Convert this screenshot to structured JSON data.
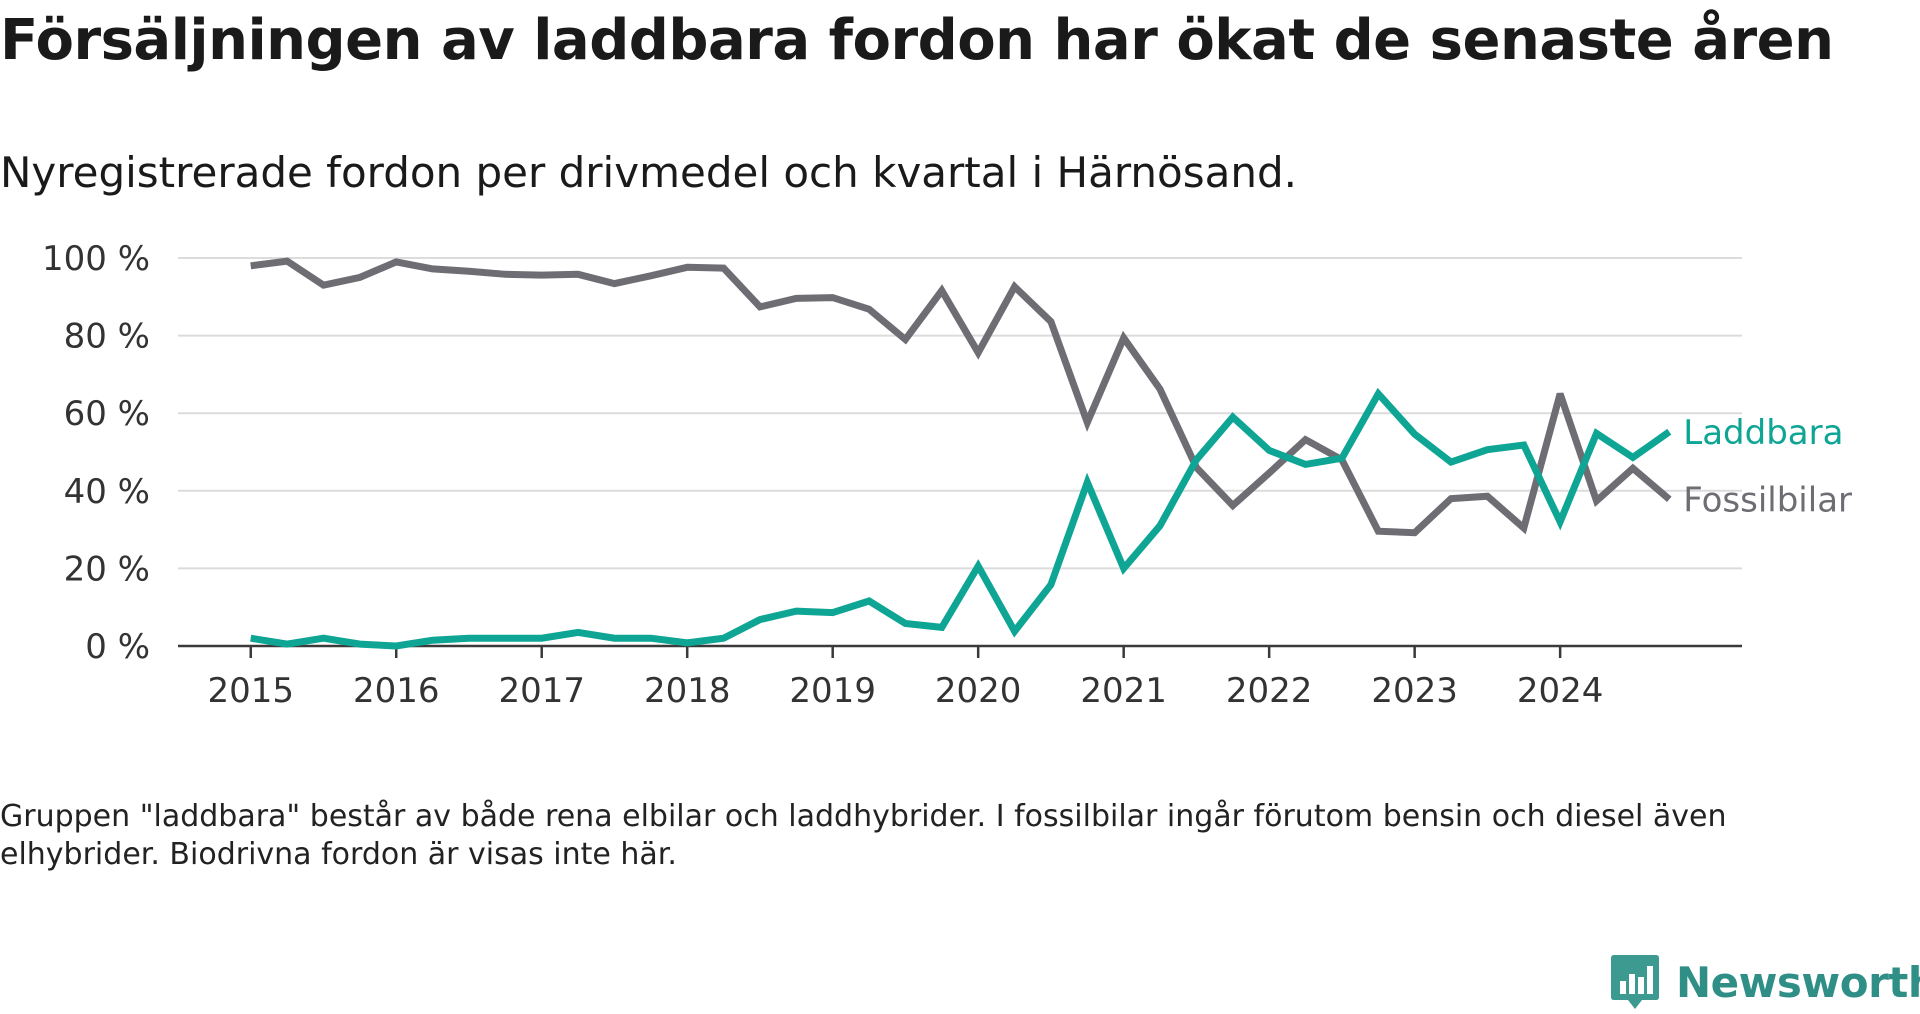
{
  "header": {
    "title": "Försäljningen av laddbara fordon har ökat de senaste åren",
    "subtitle": "Nyregistrerade fordon per drivmedel och kvartal i Härnösand."
  },
  "footnote": "Gruppen \"laddbara\" består av både rena elbilar och laddhybrider. I fossilbilar ingår förutom bensin och diesel även elhybrider. Biodrivna fordon är visas inte här.",
  "brand": {
    "name": "Newsworthy",
    "icon": "newsworthy-logo-icon",
    "color": "#3d9a91"
  },
  "colors": {
    "laddbara": "#0ea595",
    "fossil": "#6e6d73",
    "grid": "#dcdcdc",
    "axis": "#3a3a3a",
    "tick_text": "#333333"
  },
  "chart_data": {
    "type": "line",
    "title": "Nyregistrerade fordon per drivmedel och kvartal i Härnösand.",
    "xlabel": "",
    "ylabel": "",
    "x_start": 2015,
    "x_step": 0.25,
    "xlim": [
      2014.5,
      2025.25
    ],
    "ylim": [
      0,
      100
    ],
    "x_ticks": [
      "2015",
      "2016",
      "2017",
      "2018",
      "2019",
      "2020",
      "2021",
      "2022",
      "2023",
      "2024"
    ],
    "y_ticks": [
      "0 %",
      "20 %",
      "40 %",
      "60 %",
      "80 %",
      "100 %"
    ],
    "series": [
      {
        "name": "Laddbara",
        "color": "#0ea595",
        "values": [
          2,
          0.5,
          2,
          0.5,
          0,
          1.5,
          2,
          2,
          2,
          3.5,
          2,
          2,
          0.8,
          2,
          6.8,
          9,
          8.6,
          11.6,
          5.8,
          4.8,
          20.6,
          3.8,
          15.8,
          42.2,
          20,
          31,
          48,
          59,
          50.4,
          46.8,
          48.4,
          65,
          54.6,
          47.4,
          50.6,
          51.8,
          32,
          54.8,
          48.6,
          55.2
        ]
      },
      {
        "name": "Fossilbilar",
        "color": "#6e6d73",
        "values": [
          98,
          99.2,
          93,
          95,
          99,
          97.2,
          96.6,
          95.8,
          95.6,
          95.8,
          93.4,
          95.4,
          97.6,
          97.4,
          87.4,
          89.6,
          89.8,
          86.8,
          79,
          91.6,
          75.6,
          92.6,
          83.6,
          57.6,
          79.4,
          66.2,
          46,
          36.2,
          44.6,
          53.2,
          48,
          29.6,
          29.2,
          38,
          38.6,
          30.4,
          65,
          37.4,
          45.8,
          37.8
        ]
      }
    ],
    "legend": "end-of-line labels"
  }
}
